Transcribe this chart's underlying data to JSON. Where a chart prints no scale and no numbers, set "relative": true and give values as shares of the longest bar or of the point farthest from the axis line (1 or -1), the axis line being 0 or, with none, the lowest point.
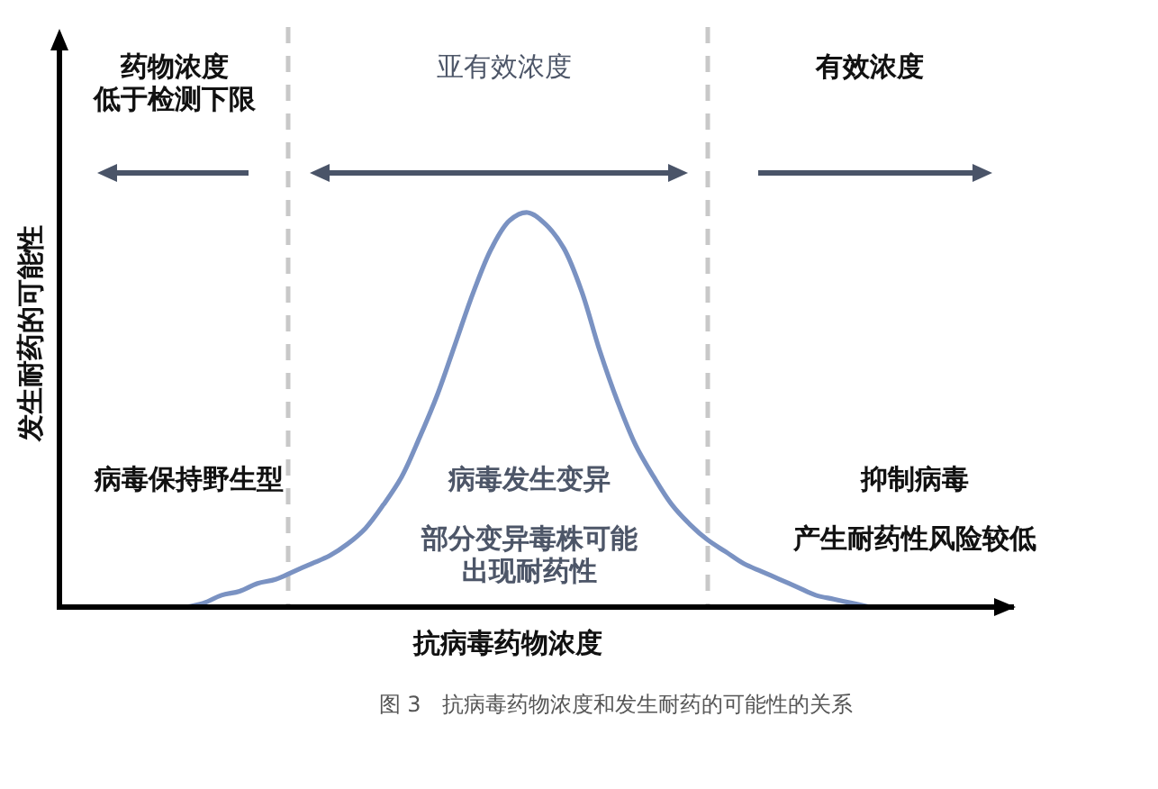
{
  "chart_data": {
    "type": "line",
    "relative": true,
    "categories": [
      null,
      null,
      null,
      null,
      null,
      null,
      null,
      null,
      null,
      null,
      null,
      null,
      null,
      null,
      null,
      null,
      null,
      null,
      null,
      null,
      null,
      null,
      null,
      null,
      null,
      null,
      null,
      null,
      null,
      null,
      null,
      null,
      null,
      null,
      null,
      null,
      null,
      null,
      null,
      null,
      null,
      null,
      null,
      null,
      null,
      null,
      null,
      null,
      null,
      null,
      null,
      null,
      null,
      null
    ],
    "series": [
      {
        "color": "#7a92c2",
        "values": [
          null,
          null,
          null,
          null,
          null,
          null,
          null,
          0,
          0.01,
          0.03,
          0.04,
          0.06,
          0.07,
          0.09,
          0.11,
          0.13,
          0.16,
          0.2,
          0.26,
          0.33,
          0.43,
          0.54,
          0.67,
          0.8,
          0.91,
          0.98,
          1,
          0.97,
          0.91,
          0.8,
          0.65,
          0.52,
          0.41,
          0.33,
          0.26,
          0.21,
          0.17,
          0.14,
          0.11,
          0.09,
          0.07,
          0.05,
          0.03,
          0.02,
          0.01,
          0,
          null,
          null,
          null,
          null,
          null,
          null,
          null,
          null
        ]
      }
    ],
    "xlabel": "抗病毒药物浓度",
    "ylabel": "发生耐药的可能性",
    "annotations": [
      "药物浓度低于检测下限",
      "亚有效浓度",
      "有效浓度",
      "病毒保持野生型",
      "病毒发生变异",
      "部分变异毒株可能出现耐药性",
      "抑制病毒",
      "产生耐药性风险较低",
      "图 3　抗病毒药物浓度和发生耐药的可能性的关系"
    ]
  }
}
